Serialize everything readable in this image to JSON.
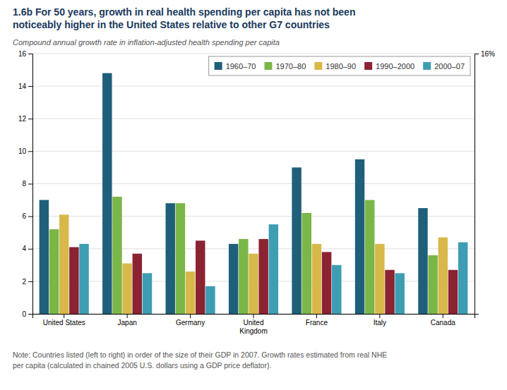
{
  "chart_data": {
    "type": "bar",
    "title": "1.6b For 50 years, growth in real health spending per capita has not been\nnoticeably higher in the United States relative to other G7 countries",
    "subtitle": "Compound annual growth rate in inflation-adjusted health spending per capita",
    "note": "Note: Countries listed (left to right) in order of the size of their GDP in 2007. Growth rates estimated from real NHE\nper capita (calculated in chained 2005 U.S. dollars using a GDP price deflator).",
    "categories": [
      "United States",
      "Japan",
      "Germany",
      "United\nKingdom",
      "France",
      "Italy",
      "Canada"
    ],
    "series": [
      {
        "name": "1960–70",
        "color": "#1f5f7a",
        "values": [
          7.0,
          14.8,
          6.8,
          4.3,
          9.0,
          9.5,
          6.5
        ]
      },
      {
        "name": "1970–80",
        "color": "#7ab648",
        "values": [
          5.2,
          7.2,
          6.8,
          4.6,
          6.2,
          7.0,
          3.6
        ]
      },
      {
        "name": "1980–90",
        "color": "#d8b84a",
        "values": [
          6.1,
          3.1,
          2.6,
          3.7,
          4.3,
          4.3,
          4.7
        ]
      },
      {
        "name": "1990–2000",
        "color": "#8b2332",
        "values": [
          4.1,
          3.7,
          4.5,
          4.6,
          3.8,
          2.7,
          2.7
        ]
      },
      {
        "name": "2000–07",
        "color": "#3d9db3",
        "values": [
          4.3,
          2.5,
          1.7,
          5.5,
          3.0,
          2.5,
          4.4
        ]
      }
    ],
    "ylim": [
      0,
      16
    ],
    "yticks": [
      0,
      2,
      4,
      6,
      8,
      10,
      12,
      14,
      16
    ],
    "y2lim": [
      0,
      16
    ],
    "y2ticks": [
      {
        "value": 16,
        "label": "16%"
      }
    ],
    "grid": true,
    "legend": "upper right"
  }
}
